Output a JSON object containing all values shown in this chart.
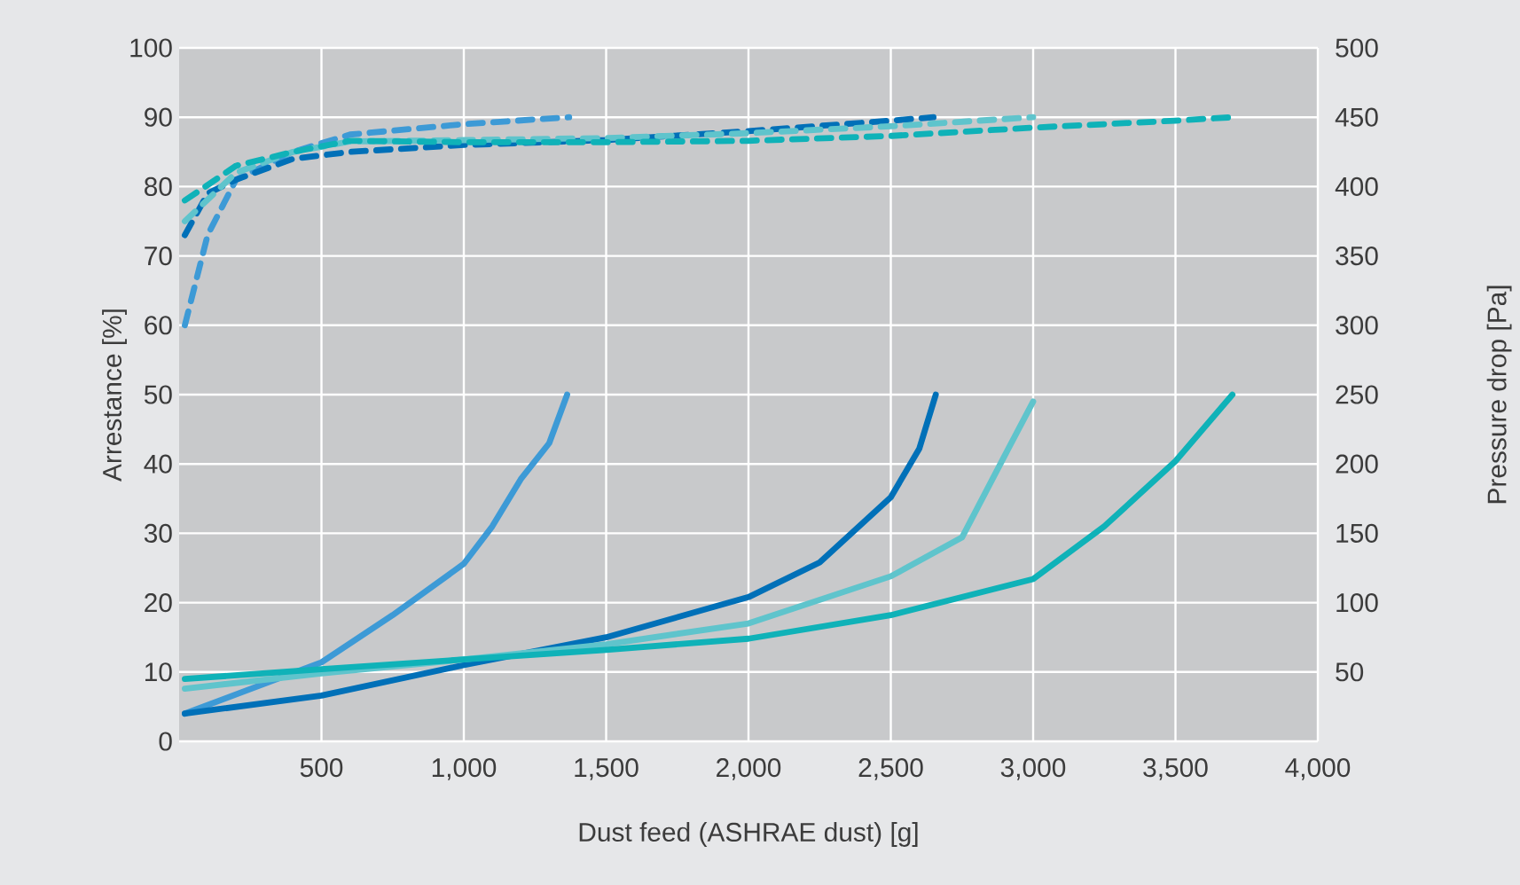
{
  "chart_data": {
    "type": "line",
    "xlabel": "Dust feed (ASHRAE dust) [g]",
    "ylabel": "Arrestance [%]",
    "y2label": "Pressure drop [Pa]",
    "xlim": [
      0,
      4000
    ],
    "xticks": [
      500,
      {
        "value": 1000,
        "label": "1,000"
      },
      {
        "value": 1500,
        "label": "1,500"
      },
      {
        "value": 2000,
        "label": "2,000"
      },
      {
        "value": 2500,
        "label": "2,500"
      },
      {
        "value": 3000,
        "label": "3,000"
      },
      {
        "value": 3500,
        "label": "3,500"
      },
      {
        "value": 4000,
        "label": "4,000"
      }
    ],
    "ylim": [
      0,
      100
    ],
    "yticks": [
      0,
      10,
      20,
      30,
      40,
      50,
      60,
      70,
      80,
      90,
      100
    ],
    "y2lim": [
      0,
      500
    ],
    "y2ticks": [
      50,
      100,
      150,
      200,
      250,
      300,
      350,
      400,
      450,
      500
    ],
    "grid": true,
    "series": [
      {
        "color": "#3d9ad6",
        "line_style": "dashed",
        "x": [
          20,
          100,
          200,
          400,
          600,
          1000,
          1370
        ],
        "values": [
          60,
          73,
          81,
          85,
          87.5,
          89,
          90
        ]
      },
      {
        "color": "#0070b8",
        "line_style": "dashed",
        "x": [
          20,
          100,
          200,
          400,
          600,
          1000,
          1500,
          2000,
          2500,
          2650
        ],
        "values": [
          73,
          79,
          81,
          84,
          85,
          86,
          86.7,
          88,
          89.5,
          90
        ]
      },
      {
        "color": "#5fc4cc",
        "line_style": "dashed",
        "x": [
          20,
          200,
          400,
          600,
          1000,
          1500,
          2000,
          2500,
          3000
        ],
        "values": [
          75,
          82,
          85,
          86.5,
          86.7,
          87,
          87.7,
          88.7,
          90
        ]
      },
      {
        "color": "#0fb2b8",
        "line_style": "dashed",
        "x": [
          20,
          200,
          400,
          600,
          1000,
          1500,
          2000,
          2500,
          3000,
          3500,
          3700
        ],
        "values": [
          78,
          83,
          85,
          86.6,
          86.4,
          86.4,
          86.6,
          87.3,
          88.5,
          89.5,
          90
        ]
      },
      {
        "color": "#3d9ad6",
        "line_style": "solid",
        "axis": "y2",
        "x": [
          20,
          500,
          750,
          1000,
          1100,
          1200,
          1300,
          1363
        ],
        "values": [
          20,
          57,
          91,
          128,
          155,
          189,
          215,
          250
        ]
      },
      {
        "color": "#0070b8",
        "line_style": "solid",
        "axis": "y2",
        "x": [
          20,
          500,
          1000,
          1500,
          2000,
          2250,
          2500,
          2600,
          2658
        ],
        "values": [
          20,
          33,
          55,
          75,
          104,
          129,
          176,
          211,
          250
        ]
      },
      {
        "color": "#5fc4cc",
        "line_style": "solid",
        "axis": "y2",
        "x": [
          20,
          500,
          1000,
          1500,
          2000,
          2500,
          2750,
          2900,
          3000
        ],
        "values": [
          38,
          49,
          59,
          70,
          85,
          119,
          147,
          206,
          245
        ]
      },
      {
        "color": "#0fb2b8",
        "line_style": "solid",
        "axis": "y2",
        "x": [
          20,
          500,
          1000,
          1500,
          2000,
          2500,
          3000,
          3250,
          3500,
          3700
        ],
        "values": [
          45,
          52,
          59,
          66,
          74,
          91,
          117,
          155,
          202,
          250
        ]
      }
    ]
  }
}
